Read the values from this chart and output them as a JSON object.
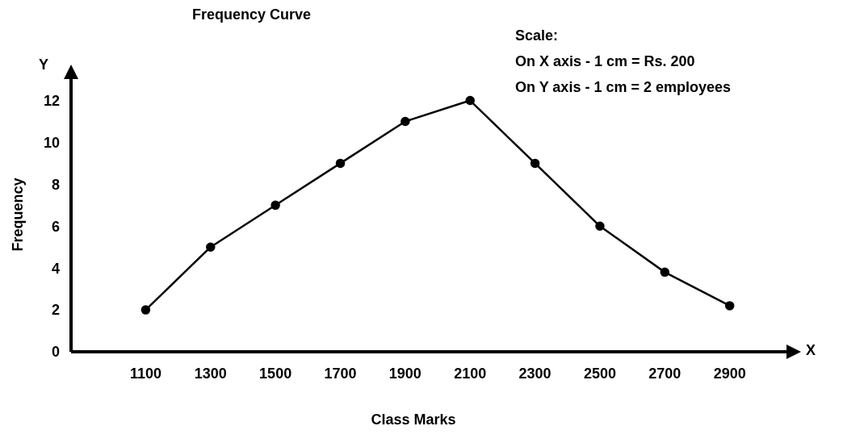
{
  "chart_data": {
    "type": "line",
    "title": "Frequency Curve",
    "xlabel": "Class Marks",
    "ylabel": "Frequency",
    "annotations": [
      "Y",
      "X",
      "Scale:",
      "On X axis - 1 cm = Rs. 200",
      "On Y axis - 1 cm = 2 employees"
    ],
    "x": [
      1100,
      1300,
      1500,
      1700,
      1900,
      2100,
      2300,
      2500,
      2700,
      2900
    ],
    "series": [
      {
        "color": "#000000",
        "values": [
          2,
          5,
          7,
          9,
          11,
          12,
          9,
          6,
          3.8,
          2.2
        ]
      }
    ],
    "xlim": [
      870,
      3080
    ],
    "xticks": [
      1100,
      1300,
      1500,
      1700,
      1900,
      2100,
      2300,
      2500,
      2700,
      2900
    ],
    "ylim": [
      0,
      13.1
    ],
    "yticks": [
      0,
      2,
      4,
      6,
      8,
      10,
      12
    ],
    "grid": false,
    "legend": false,
    "marker": "circle",
    "line_style": "solid"
  }
}
